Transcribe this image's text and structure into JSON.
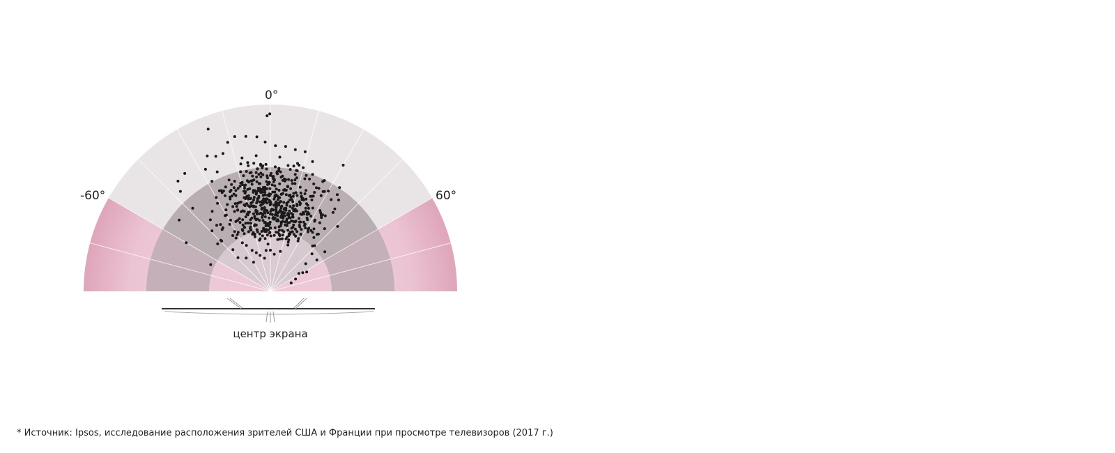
{
  "labels": {
    "left_angle": "-60°",
    "top_angle": "0°",
    "right_angle": "60°",
    "center": "центр экрана"
  },
  "footnote": "* Источник: Ipsos, исследование расположения зрителей США и Франции при просмотре телевизоров (2017 г.)",
  "colors": {
    "outer_zone": "#e9e4e6",
    "middle_zone": "#b9afb3",
    "inner_zone": "#d6c9cf",
    "side_pink": "#e3afc3",
    "center_pink": "#edc8d6",
    "dot": "#1a1a1a"
  },
  "chart_data": {
    "type": "scatter",
    "description_units": "polar: angle in degrees from screen center line, radius as fraction of outer arc",
    "angle_range": [
      -90,
      90
    ],
    "radius_range": [
      0,
      1
    ],
    "points": [
      [
        -1.1,
        0.94
      ],
      [
        -0.2,
        0.95
      ],
      [
        -21,
        0.93
      ],
      [
        30,
        0.78
      ],
      [
        -40,
        0.77
      ],
      [
        -42,
        0.72
      ],
      [
        -36,
        0.78
      ],
      [
        -31,
        0.55
      ],
      [
        -30,
        0.58
      ],
      [
        -52,
        0.62
      ],
      [
        -60,
        0.52
      ],
      [
        -66,
        0.35
      ],
      [
        -25,
        0.8
      ],
      [
        -22,
        0.78
      ],
      [
        -19,
        0.78
      ],
      [
        -16,
        0.83
      ],
      [
        -13,
        0.85
      ],
      [
        -9,
        0.84
      ],
      [
        -5,
        0.83
      ],
      [
        -2,
        0.8
      ],
      [
        2,
        0.78
      ],
      [
        6,
        0.78
      ],
      [
        10,
        0.77
      ],
      [
        14,
        0.77
      ],
      [
        18,
        0.73
      ],
      [
        -28,
        0.74
      ],
      [
        -24,
        0.7
      ],
      [
        -12,
        0.73
      ],
      [
        -6,
        0.73
      ],
      [
        4,
        0.72
      ],
      [
        12,
        0.7
      ],
      [
        17,
        0.63
      ],
      [
        22,
        0.62
      ],
      [
        24,
        0.58
      ],
      [
        -40,
        0.5
      ],
      [
        -44,
        0.45
      ],
      [
        -38,
        0.42
      ],
      [
        -48,
        0.38
      ],
      [
        -34,
        0.36
      ],
      [
        -42,
        0.3
      ],
      [
        -30,
        0.3
      ],
      [
        -44,
        0.25
      ],
      [
        -36,
        0.22
      ],
      [
        -30,
        0.18
      ],
      [
        -24,
        0.24
      ],
      [
        -20,
        0.34
      ],
      [
        -18,
        0.45
      ],
      [
        -14,
        0.55
      ],
      [
        -10,
        0.6
      ],
      [
        -6,
        0.58
      ],
      [
        -2,
        0.55
      ],
      [
        2,
        0.6
      ],
      [
        6,
        0.62
      ],
      [
        8,
        0.55
      ],
      [
        12,
        0.5
      ],
      [
        16,
        0.45
      ],
      [
        20,
        0.4
      ],
      [
        24,
        0.35
      ],
      [
        28,
        0.32
      ],
      [
        32,
        0.45
      ],
      [
        36,
        0.5
      ],
      [
        40,
        0.4
      ],
      [
        44,
        0.34
      ],
      [
        48,
        0.3
      ],
      [
        52,
        0.24
      ],
      [
        56,
        0.3
      ],
      [
        60,
        0.2
      ],
      [
        64,
        0.15
      ],
      [
        68,
        0.12
      ],
      [
        58,
        0.18
      ],
      [
        62,
        0.22
      ],
      [
        54,
        0.36
      ],
      [
        46,
        0.5
      ],
      [
        38,
        0.56
      ],
      [
        30,
        0.62
      ],
      [
        26,
        0.66
      ],
      [
        -26,
        0.6
      ],
      [
        -22,
        0.55
      ],
      [
        -18,
        0.62
      ],
      [
        -14,
        0.66
      ],
      [
        -10,
        0.7
      ],
      [
        -6,
        0.66
      ],
      [
        -2,
        0.68
      ],
      [
        0,
        0.62
      ],
      [
        4,
        0.66
      ],
      [
        8,
        0.68
      ],
      [
        12,
        0.64
      ],
      [
        16,
        0.58
      ],
      [
        20,
        0.52
      ],
      [
        -16,
        0.38
      ],
      [
        -12,
        0.4
      ],
      [
        -8,
        0.42
      ],
      [
        -4,
        0.45
      ],
      [
        0,
        0.48
      ],
      [
        4,
        0.44
      ],
      [
        8,
        0.4
      ],
      [
        12,
        0.38
      ],
      [
        16,
        0.34
      ],
      [
        20,
        0.28
      ],
      [
        -12,
        0.28
      ],
      [
        -8,
        0.3
      ],
      [
        -4,
        0.32
      ],
      [
        0,
        0.34
      ],
      [
        4,
        0.3
      ],
      [
        8,
        0.28
      ],
      [
        -20,
        0.22
      ],
      [
        -16,
        0.2
      ],
      [
        -10,
        0.18
      ],
      [
        -6,
        0.22
      ],
      [
        0,
        0.22
      ],
      [
        6,
        0.2
      ],
      [
        14,
        0.22
      ]
    ]
  }
}
